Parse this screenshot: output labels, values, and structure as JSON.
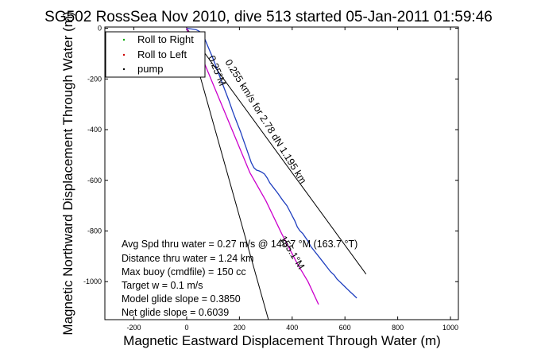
{
  "chart_data": {
    "type": "line",
    "title": "SG502 RossSea Nov 2010, dive 513 started 05-Jan-2011 01:59:46",
    "xlabel": "Magnetic Eastward Displacement Through Water (m)",
    "ylabel": "Magnetic Northward Displacement Through Water (m)",
    "xlim": [
      -310,
      1030
    ],
    "ylim": [
      -1150,
      5
    ],
    "xticks": [
      -200,
      0,
      200,
      400,
      600,
      800,
      1000
    ],
    "yticks": [
      -1000,
      -800,
      -600,
      -400,
      -200,
      0
    ],
    "grid": false,
    "legend": {
      "placement": "top-left",
      "entries": [
        {
          "label": "Roll to Right",
          "color": "#00aa00",
          "marker": "dot"
        },
        {
          "label": "Roll to Left",
          "color": "#cc0000",
          "marker": "dot"
        },
        {
          "label": "pump",
          "color": "#000000",
          "marker": "dot"
        }
      ]
    },
    "series": [
      {
        "color": "#1f3fbf",
        "x": [
          0,
          8,
          20,
          35,
          45,
          60,
          80,
          100,
          120,
          140,
          160,
          175,
          190,
          205,
          215,
          225,
          235,
          245,
          255,
          265,
          275,
          285,
          295,
          305,
          315,
          330,
          345,
          355,
          365,
          380,
          390,
          400,
          410,
          420,
          430,
          440,
          450,
          460,
          470,
          485,
          500,
          515,
          530,
          545,
          560,
          570,
          580,
          590,
          600,
          610,
          620,
          630,
          645
        ],
        "y": [
          0,
          -1,
          -3,
          -5,
          -10,
          -20,
          -70,
          -120,
          -175,
          -230,
          -285,
          -330,
          -370,
          -410,
          -440,
          -470,
          -500,
          -530,
          -550,
          -560,
          -563,
          -568,
          -575,
          -590,
          -610,
          -630,
          -650,
          -665,
          -680,
          -700,
          -720,
          -740,
          -760,
          -785,
          -800,
          -810,
          -825,
          -840,
          -860,
          -880,
          -900,
          -920,
          -940,
          -960,
          -975,
          -990,
          -1000,
          -1010,
          -1020,
          -1030,
          -1040,
          -1050,
          -1065
        ]
      },
      {
        "color": "#cc00cc",
        "x": [
          0,
          60,
          120,
          180,
          240,
          300,
          360,
          420,
          460,
          500
        ],
        "y": [
          0,
          -120,
          -270,
          -420,
          -570,
          -680,
          -810,
          -930,
          -1000,
          -1090
        ]
      }
    ],
    "reference_lines": [
      {
        "color": "#000000",
        "x": [
          0,
          680
        ],
        "y": [
          0,
          -970
        ]
      },
      {
        "color": "#000000",
        "x": [
          0,
          310
        ],
        "y": [
          0,
          -1150
        ]
      }
    ],
    "annotations": {
      "avg_speed": "Avg Spd thru water =  0.27 m/s @ 148.7   °M (163.7 °T)",
      "distance": "Distance thru water =  1.24 km",
      "max_buoy": "Max buoy (cmdfile) = 150 cc",
      "target_w": "Target w = 0.1 m/s",
      "model_glide": "Model glide slope = 0.3850",
      "net_glide": "Net glide slope = 0.6039",
      "line_label_1": "0.25°M",
      "line_label_2": "0.255 km/s for 2.78 dN 1.195 km",
      "line_label_3": "155.1°M"
    }
  }
}
